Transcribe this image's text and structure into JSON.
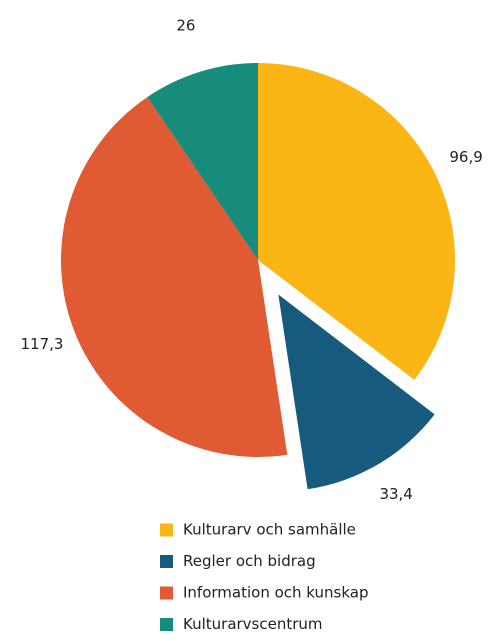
{
  "chart_data": {
    "type": "pie",
    "categories": [
      "Kulturarv och samhälle",
      "Regler och bidrag",
      "Information och kunskap",
      "Kulturarvscentrum"
    ],
    "values": [
      96.9,
      33.4,
      117.3,
      26
    ],
    "value_labels": [
      "96,9",
      "33,4",
      "117,3",
      "26"
    ],
    "colors": [
      "#fbb616",
      "#165a7e",
      "#e05a33",
      "#178c7c"
    ],
    "exploded": [
      false,
      true,
      false,
      false
    ],
    "legend": "bottom"
  }
}
